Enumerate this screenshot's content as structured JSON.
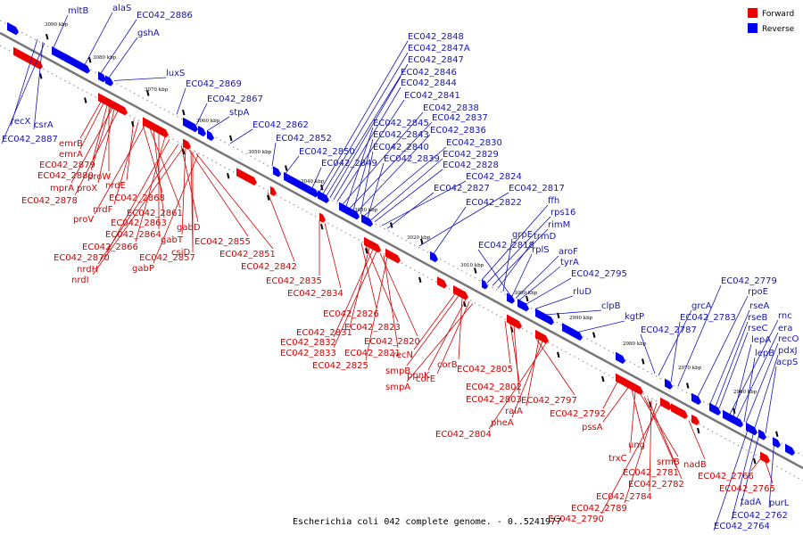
{
  "caption": "Escherichia coli 042 complete genome. - 0..5241977",
  "legend": [
    {
      "label": "Forward",
      "color": "#ee0000"
    },
    {
      "label": "Reverse",
      "color": "#0000ee"
    }
  ],
  "colors": {
    "forward": "#ee0000",
    "reverse": "#0000ee",
    "backbone": "#777777"
  },
  "scale_labels": [
    "3090 kbp",
    "3080 kbp",
    "3070 kbp",
    "3060 kbp",
    "3050 kbp",
    "3040 kbp",
    "3030 kbp",
    "3020 kbp",
    "3010 kbp",
    "3000 kbp",
    "2990 kbp",
    "2980 kbp",
    "2970 kbp",
    "2960 kbp"
  ],
  "reverse_labels": [
    "mltB",
    "alaS",
    "EC042_2886",
    "gshA",
    "luxS",
    "EC042_2869",
    "EC042_2867",
    "stpA",
    "EC042_2862",
    "EC042_2852",
    "EC042_2850",
    "EC042_2849",
    "EC042_2848",
    "EC042_2847A",
    "EC042_2847",
    "EC042_2846",
    "EC042_2844",
    "EC042_2841",
    "EC042_2838",
    "EC042_2845",
    "EC042_2837",
    "EC042_2843",
    "EC042_2836",
    "EC042_2840",
    "EC042_2830",
    "EC042_2839",
    "EC042_2829",
    "EC042_2828",
    "EC042_2824",
    "EC042_2827",
    "EC042_2817",
    "EC042_2822",
    "ffh",
    "rps16",
    "rimM",
    "trmD",
    "grpE",
    "EC042_2818",
    "rplS",
    "aroF",
    "tyrA",
    "EC042_2795",
    "rluD",
    "clpB",
    "kgtP",
    "grcA",
    "EC042_2783",
    "EC042_2787",
    "EC042_2779",
    "rpoE",
    "rseA",
    "rseB",
    "rseC",
    "rnc",
    "era",
    "recO",
    "lepA",
    "pdxJ",
    "lepB",
    "acpS",
    "tadA",
    "purL",
    "recX",
    "csrA",
    "EC042_2887",
    "EC042_2764",
    "EC042_2762"
  ],
  "forward_labels": [
    "emrB",
    "emrA",
    "EC042_2879",
    "proW",
    "EC042_2880",
    "mprA",
    "proX",
    "EC042_2878",
    "nrdE",
    "nrdF",
    "EC042_2868",
    "proV",
    "EC042_2861",
    "EC042_2863",
    "EC042_2864",
    "gabD",
    "gabT",
    "EC042_2866",
    "EC042_2855",
    "csiD",
    "EC042_2870",
    "EC042_2857",
    "EC042_2851",
    "nrdH",
    "gabP",
    "nrdI",
    "EC042_2842",
    "EC042_2835",
    "EC042_2834",
    "EC042_2826",
    "EC042_2823",
    "EC042_2831",
    "EC042_2832",
    "EC042_2820",
    "EC042_2833",
    "EC042_2821",
    "EC042_2825",
    "recN",
    "smpB",
    "corB",
    "ppnK",
    "corE",
    "smpA",
    "EC042_2805",
    "EC042_2802",
    "EC042_2803",
    "EC042_2797",
    "raiA",
    "pheA",
    "EC042_2804",
    "EC042_2792",
    "pssA",
    "ung",
    "trxC",
    "srmB",
    "EC042_2781",
    "EC042_2782",
    "EC042_2784",
    "EC042_2789",
    "EC042_2790",
    "nadB",
    "EC042_2766",
    "EC042_2765"
  ]
}
